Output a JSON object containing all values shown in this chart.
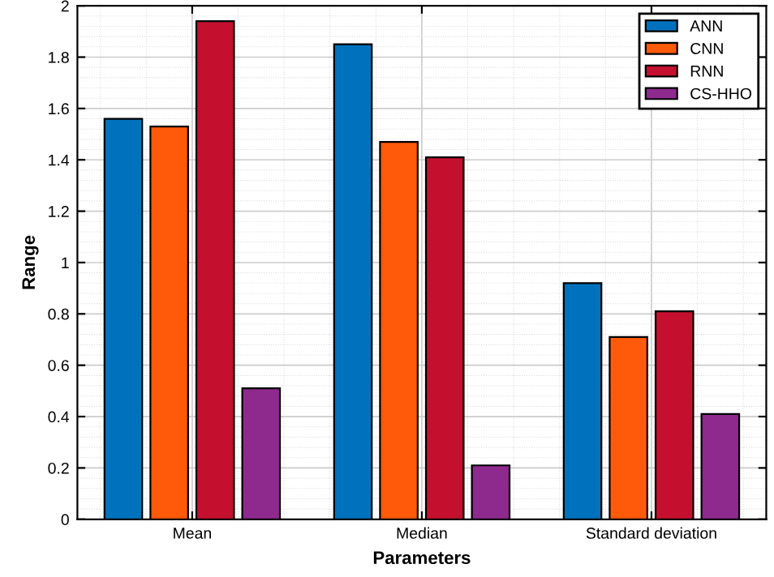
{
  "chart_data": {
    "type": "bar",
    "xlabel": "Parameters",
    "ylabel": "Range",
    "categories": [
      "Mean",
      "Median",
      "Standard deviation"
    ],
    "series": [
      {
        "name": "ANN",
        "color": "#0072bd",
        "values": [
          1.56,
          1.85,
          0.92
        ]
      },
      {
        "name": "CNN",
        "color": "#ff5a0a",
        "values": [
          1.53,
          1.47,
          0.71
        ]
      },
      {
        "name": "RNN",
        "color": "#c4102e",
        "values": [
          1.94,
          1.41,
          0.81
        ]
      },
      {
        "name": "CS-HHO",
        "color": "#8e2a8e",
        "values": [
          0.51,
          0.21,
          0.41
        ]
      }
    ],
    "ylim": [
      0,
      2
    ],
    "yticks": [
      0,
      0.2,
      0.4,
      0.6,
      0.8,
      1,
      1.2,
      1.4,
      1.6,
      1.8,
      2
    ],
    "grid": true,
    "legend": "top right"
  }
}
